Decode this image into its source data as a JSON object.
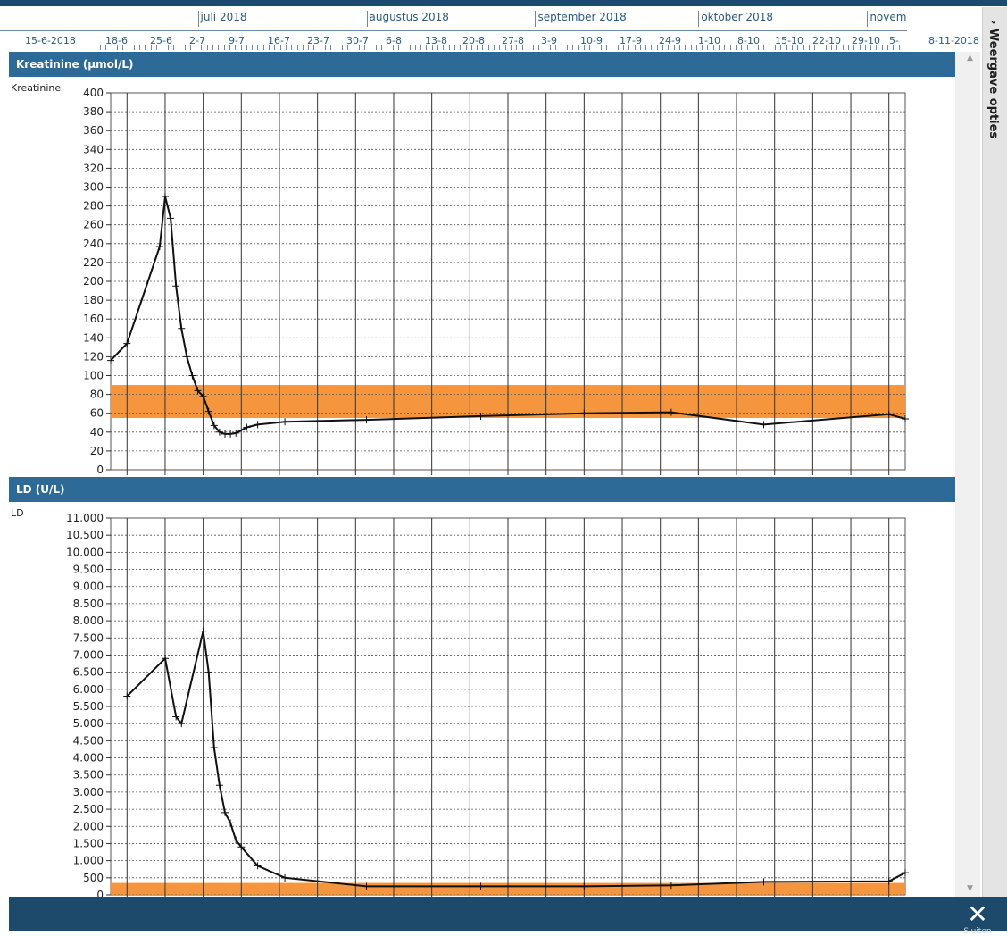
{
  "timeline": {
    "months": [
      "juli 2018",
      "augustus 2018",
      "september 2018",
      "oktober 2018",
      "novem"
    ],
    "days": [
      "15-6-2018",
      "18-6",
      "25-6",
      "2-7",
      "9-7",
      "16-7",
      "23-7",
      "30-7",
      "6-8",
      "13-8",
      "20-8",
      "27-8",
      "3-9",
      "10-9",
      "17-9",
      "24-9",
      "1-10",
      "8-10",
      "15-10",
      "22-10",
      "29-10",
      "5-",
      "8-11-2018"
    ]
  },
  "sidebar": {
    "label": "Weergave opties"
  },
  "bottom_bar": {
    "close_label": "Sluiten"
  },
  "colors": {
    "header": "#2e6a98",
    "band": "#f5963f",
    "line": "#111111"
  },
  "icons": {
    "close": "close-icon",
    "sidebar_toggle": "chevron-right-icon"
  },
  "chart_data": [
    {
      "type": "line",
      "title": "Kreatinine (µmol/L)",
      "series": [
        {
          "name": "Kreatinine",
          "x": [
            "2018-06-15",
            "2018-06-18",
            "2018-06-24",
            "2018-06-25",
            "2018-06-26",
            "2018-06-27",
            "2018-06-28",
            "2018-06-29",
            "2018-06-30",
            "2018-07-01",
            "2018-07-02",
            "2018-07-03",
            "2018-07-04",
            "2018-07-05",
            "2018-07-06",
            "2018-07-07",
            "2018-07-08",
            "2018-07-10",
            "2018-07-12",
            "2018-07-17",
            "2018-08-01",
            "2018-08-22",
            "2018-09-10",
            "2018-09-26",
            "2018-10-13",
            "2018-11-05",
            "2018-11-08"
          ],
          "values": [
            116,
            134,
            237,
            290,
            267,
            195,
            150,
            120,
            100,
            84,
            78,
            62,
            47,
            40,
            38,
            38,
            39,
            45,
            48,
            51,
            53,
            57,
            60,
            61,
            48,
            59,
            54
          ]
        }
      ],
      "reference_range": [
        55,
        90
      ],
      "ylim": [
        0,
        400
      ],
      "yticks": [
        0,
        20,
        40,
        60,
        80,
        100,
        120,
        140,
        160,
        180,
        200,
        220,
        240,
        260,
        280,
        300,
        320,
        340,
        360,
        380,
        400
      ],
      "xlim": [
        "2018-06-15",
        "2018-11-08"
      ],
      "grid": true
    },
    {
      "type": "line",
      "title": "LD (U/L)",
      "series": [
        {
          "name": "LD",
          "x": [
            "2018-06-18",
            "2018-06-25",
            "2018-06-27",
            "2018-06-28",
            "2018-07-02",
            "2018-07-03",
            "2018-07-04",
            "2018-07-05",
            "2018-07-06",
            "2018-07-07",
            "2018-07-08",
            "2018-07-09",
            "2018-07-12",
            "2018-07-17",
            "2018-08-01",
            "2018-08-22",
            "2018-09-10",
            "2018-09-26",
            "2018-10-13",
            "2018-11-05",
            "2018-11-08"
          ],
          "values": [
            5800,
            6900,
            5200,
            5000,
            7700,
            6500,
            4300,
            3200,
            2400,
            2100,
            1600,
            1400,
            850,
            500,
            250,
            250,
            250,
            280,
            380,
            400,
            650
          ]
        }
      ],
      "reference_range": [
        0,
        350
      ],
      "ylim": [
        0,
        11000
      ],
      "yticks": [
        0,
        500,
        1000,
        1500,
        2000,
        2500,
        3000,
        3500,
        4000,
        4500,
        5000,
        5500,
        6000,
        6500,
        7000,
        7500,
        8000,
        8500,
        9000,
        9500,
        10000,
        10500,
        11000
      ],
      "ytick_labels": [
        "0",
        "500",
        "1.000",
        "1.500",
        "2.000",
        "2.500",
        "3.000",
        "3.500",
        "4.000",
        "4.500",
        "5.000",
        "5.500",
        "6.000",
        "6.500",
        "7.000",
        "7.500",
        "8.000",
        "8.500",
        "9.000",
        "9.500",
        "10.000",
        "10.500",
        "11.000"
      ],
      "xlim": [
        "2018-06-15",
        "2018-11-08"
      ],
      "grid": true
    }
  ]
}
